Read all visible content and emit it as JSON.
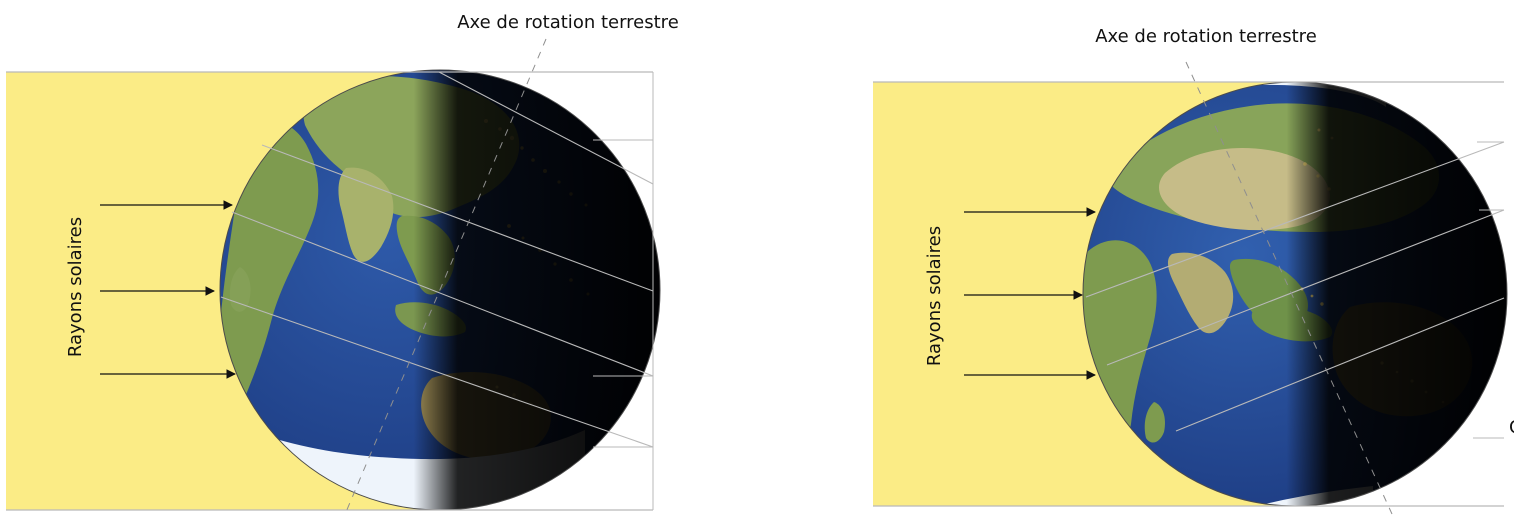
{
  "figure_left": {
    "axis_label": "Axe de rotation terrestre",
    "rays_label": "Rayons solaires"
  },
  "figure_right": {
    "axis_label": "Axe de rotation terrestre",
    "rays_label": "Rayons solaires",
    "cut_label": "C"
  },
  "colors": {
    "sunlight": "#fbec86",
    "ocean": "#1f3f86",
    "land": "#7e9b4f",
    "ice": "#eef4fb",
    "night": "#000000",
    "city_lights": "#ffe37a",
    "lines": "#b9b9b9"
  },
  "icons": {
    "left_globe": "earth-globe-icon",
    "right_globe": "earth-globe-icon",
    "arrow": "arrow-right-icon"
  }
}
